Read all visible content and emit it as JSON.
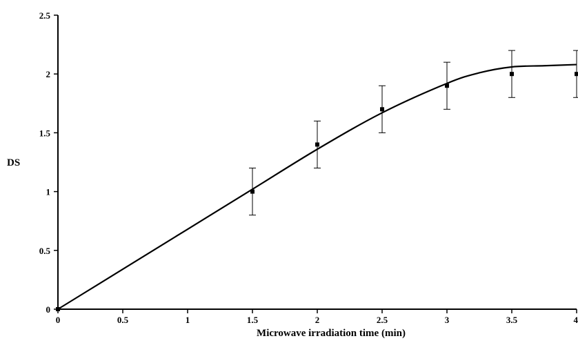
{
  "chart_data": {
    "type": "scatter",
    "title": "",
    "xlabel": "Microwave irradiation time (min)",
    "ylabel": "DS",
    "xlim": [
      0,
      4
    ],
    "ylim": [
      0,
      2.5
    ],
    "grid": false,
    "x_ticks": [
      "0",
      "0.5",
      "1",
      "1.5",
      "2",
      "2.5",
      "3",
      "3.5",
      "4"
    ],
    "y_ticks": [
      "0",
      "0.5",
      "1",
      "1.5",
      "2",
      "2.5"
    ],
    "points": [
      {
        "x": 0,
        "y": 0,
        "err": 0
      },
      {
        "x": 1.5,
        "y": 1.0,
        "err": 0.2
      },
      {
        "x": 2.0,
        "y": 1.4,
        "err": 0.2
      },
      {
        "x": 2.5,
        "y": 1.7,
        "err": 0.2
      },
      {
        "x": 3.0,
        "y": 1.9,
        "err": 0.2
      },
      {
        "x": 3.5,
        "y": 2.0,
        "err": 0.2
      },
      {
        "x": 4.0,
        "y": 2.0,
        "err": 0.2
      }
    ],
    "fit_curve": {
      "x": [
        0,
        0.5,
        1.0,
        1.5,
        2.0,
        2.5,
        3.0,
        3.25,
        3.5,
        3.75,
        4.0
      ],
      "y": [
        0,
        0.34,
        0.68,
        1.02,
        1.36,
        1.67,
        1.92,
        2.01,
        2.06,
        2.07,
        2.08
      ]
    }
  }
}
